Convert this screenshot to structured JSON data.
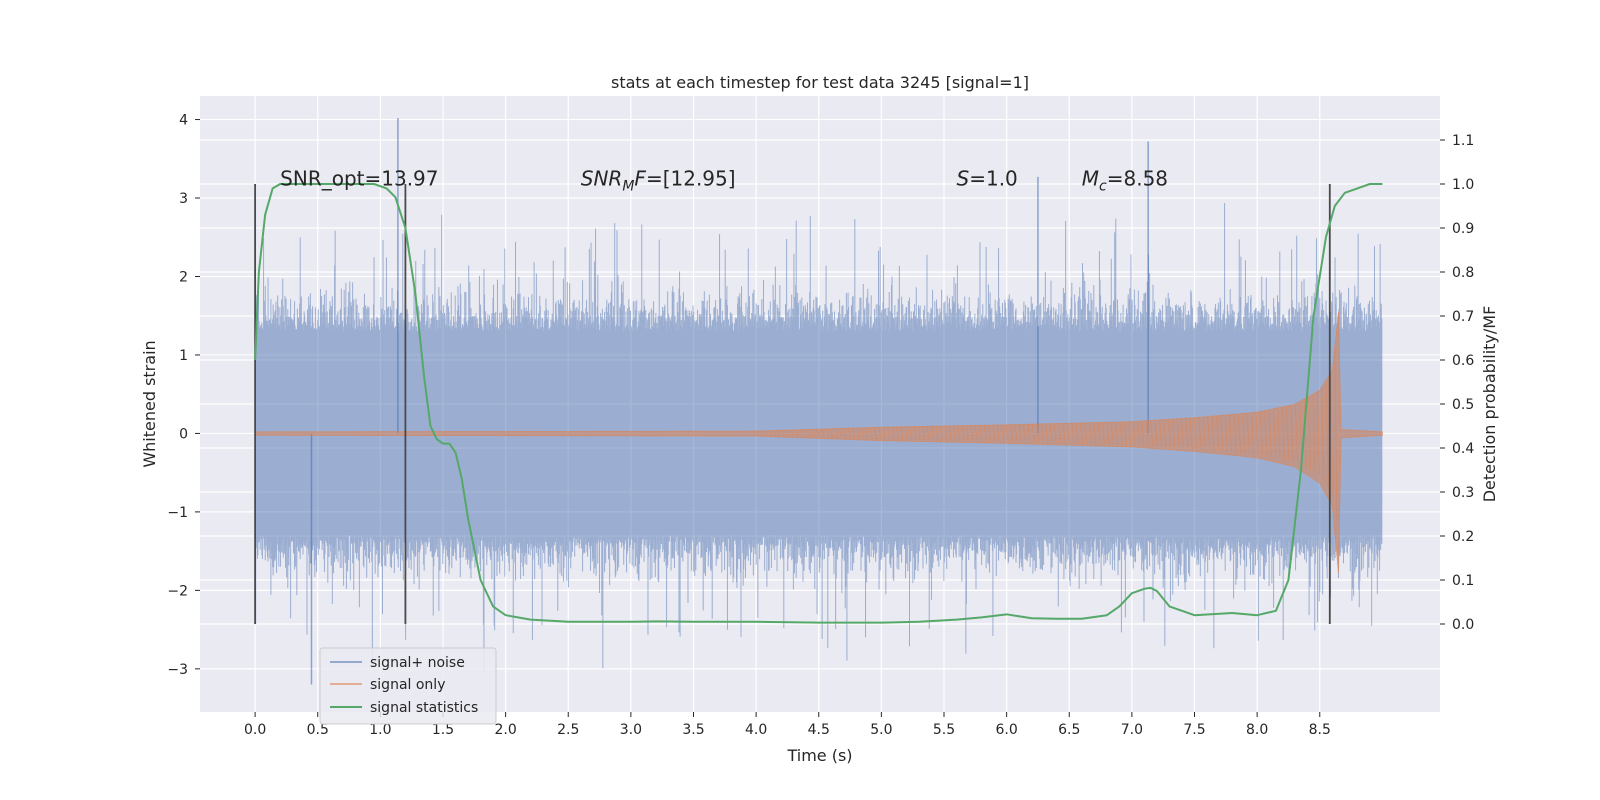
{
  "chart_data": {
    "type": "line",
    "title": "stats at each timestep for test data 3245 [signal=1]",
    "xlabel": "Time (s)",
    "ylabel": "Whitened strain",
    "y2label": "Detection probability/MF",
    "xlim": [
      -0.44,
      9.46
    ],
    "ylim": [
      -3.55,
      4.3
    ],
    "y2lim": [
      -0.2,
      1.2
    ],
    "xticks": [
      "0.0",
      "0.5",
      "1.0",
      "1.5",
      "2.0",
      "2.5",
      "3.0",
      "3.5",
      "4.0",
      "4.5",
      "5.0",
      "5.5",
      "6.0",
      "6.5",
      "7.0",
      "7.5",
      "8.0",
      "8.5"
    ],
    "yticks": [
      "−3",
      "−2",
      "−1",
      "0",
      "1",
      "2",
      "3",
      "4"
    ],
    "y2ticks": [
      "0.0",
      "0.1",
      "0.2",
      "0.3",
      "0.4",
      "0.5",
      "0.6",
      "0.7",
      "0.8",
      "0.9",
      "1.0",
      "1.1"
    ],
    "grid": true,
    "legend_position": "lower-left",
    "colors": {
      "noise": "#4c72b0",
      "signal": "#dd8452",
      "stats": "#55a868",
      "vline": "#4a4a4a",
      "plot_bg": "#eaeaf2"
    },
    "series": [
      {
        "name": "signal+ noise",
        "axis": "left",
        "x_range": [
          0.0,
          9.0
        ],
        "typical_min": -1.3,
        "typical_max": 1.3,
        "spike_max": 4.02,
        "spike_min": -3.2
      },
      {
        "name": "signal only",
        "axis": "left",
        "x_range": [
          0.0,
          9.0
        ],
        "envelope_x": [
          0.0,
          4.0,
          5.0,
          6.0,
          7.0,
          7.5,
          8.0,
          8.3,
          8.5,
          8.6,
          8.65,
          8.67,
          9.0
        ],
        "envelope": [
          0.02,
          0.03,
          0.08,
          0.11,
          0.15,
          0.2,
          0.27,
          0.37,
          0.55,
          0.8,
          1.55,
          0.05,
          0.02
        ]
      },
      {
        "name": "signal statistics",
        "axis": "right",
        "x": [
          0.0,
          0.03,
          0.08,
          0.14,
          0.2,
          0.3,
          0.5,
          0.8,
          0.95,
          1.05,
          1.12,
          1.2,
          1.28,
          1.35,
          1.4,
          1.45,
          1.5,
          1.55,
          1.6,
          1.65,
          1.7,
          1.8,
          1.9,
          2.0,
          2.2,
          2.5,
          3.0,
          3.2,
          3.5,
          4.0,
          4.5,
          5.0,
          5.3,
          5.6,
          5.8,
          6.0,
          6.2,
          6.4,
          6.6,
          6.8,
          6.9,
          7.0,
          7.1,
          7.15,
          7.2,
          7.3,
          7.5,
          7.8,
          8.0,
          8.15,
          8.25,
          8.35,
          8.45,
          8.55,
          8.62,
          8.7,
          8.8,
          8.9,
          9.0
        ],
        "y": [
          0.6,
          0.8,
          0.93,
          0.99,
          1.0,
          1.0,
          1.0,
          1.0,
          1.0,
          0.99,
          0.97,
          0.9,
          0.75,
          0.56,
          0.45,
          0.42,
          0.41,
          0.41,
          0.39,
          0.33,
          0.24,
          0.1,
          0.04,
          0.02,
          0.01,
          0.005,
          0.005,
          0.006,
          0.005,
          0.005,
          0.003,
          0.003,
          0.005,
          0.01,
          0.015,
          0.022,
          0.013,
          0.012,
          0.012,
          0.02,
          0.04,
          0.07,
          0.08,
          0.082,
          0.075,
          0.04,
          0.02,
          0.025,
          0.02,
          0.03,
          0.1,
          0.35,
          0.7,
          0.88,
          0.95,
          0.98,
          0.99,
          1.0,
          1.0
        ]
      }
    ],
    "vlines": [
      0.0,
      1.2,
      8.58
    ],
    "annotations": [
      {
        "text": "SNR_opt=13.97",
        "x": 0.2,
        "y": 3.25
      },
      {
        "text": "SNR_MF=[12.95]",
        "x": 2.6,
        "y": 3.25
      },
      {
        "text": "S=1.0",
        "x": 5.6,
        "y": 3.25
      },
      {
        "text": "M_c=8.58",
        "x": 6.6,
        "y": 3.25
      }
    ]
  }
}
